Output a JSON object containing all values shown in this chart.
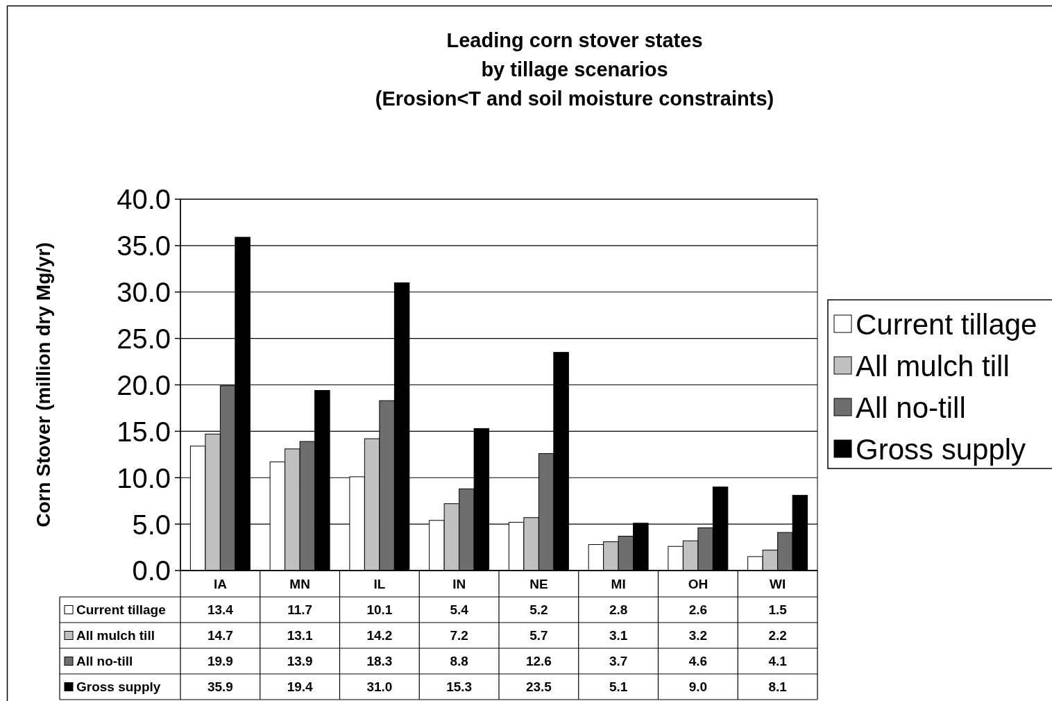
{
  "chart_data": {
    "type": "bar",
    "title": "Leading corn stover states\nby tillage scenarios\n(Erosion<T and soil moisture constraints)",
    "ylabel": "Corn Stover (million dry Mg/yr)",
    "categories": [
      "IA",
      "MN",
      "IL",
      "IN",
      "NE",
      "MI",
      "OH",
      "WI"
    ],
    "series": [
      {
        "name": "Current tillage",
        "color": "#ffffff",
        "values": [
          13.4,
          11.7,
          10.1,
          5.4,
          5.2,
          2.8,
          2.6,
          1.5
        ],
        "value_labels": [
          "13.4",
          "11.7",
          "10.1",
          "5.4",
          "5.2",
          "2.8",
          "2.6",
          "1.5"
        ]
      },
      {
        "name": "All mulch till",
        "color": "#c0c0c0",
        "values": [
          14.7,
          13.1,
          14.2,
          7.2,
          5.7,
          3.1,
          3.2,
          2.2
        ],
        "value_labels": [
          "14.7",
          "13.1",
          "14.2",
          "7.2",
          "5.7",
          "3.1",
          "3.2",
          "2.2"
        ]
      },
      {
        "name": "All no-till",
        "color": "#6e6e6e",
        "values": [
          19.9,
          13.9,
          18.3,
          8.8,
          12.6,
          3.7,
          4.6,
          4.1
        ],
        "value_labels": [
          "19.9",
          "13.9",
          "18.3",
          "8.8",
          "12.6",
          "3.7",
          "4.6",
          "4.1"
        ]
      },
      {
        "name": "Gross supply",
        "color": "#000000",
        "values": [
          35.9,
          19.4,
          31.0,
          15.3,
          23.5,
          5.1,
          9.0,
          8.1
        ],
        "value_labels": [
          "35.9",
          "19.4",
          "31.0",
          "15.3",
          "23.5",
          "5.1",
          "9.0",
          "8.1"
        ]
      }
    ],
    "ylim": [
      0,
      40
    ],
    "yticks": [
      {
        "value": 0,
        "label": "0.0"
      },
      {
        "value": 5,
        "label": "5.0"
      },
      {
        "value": 10,
        "label": "10.0"
      },
      {
        "value": 15,
        "label": "15.0"
      },
      {
        "value": 20,
        "label": "20.0"
      },
      {
        "value": 25,
        "label": "25.0"
      },
      {
        "value": 30,
        "label": "30.0"
      },
      {
        "value": 35,
        "label": "35.0"
      },
      {
        "value": 40,
        "label": "40.0"
      }
    ],
    "grid": "y",
    "legend": "right"
  }
}
